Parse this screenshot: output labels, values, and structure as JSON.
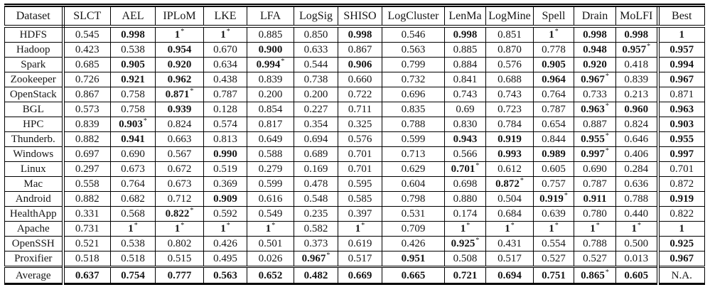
{
  "table": {
    "star_symbol": "*",
    "columns": [
      "Dataset",
      "SLCT",
      "AEL",
      "IPLoM",
      "LKE",
      "LFA",
      "LogSig",
      "SHISO",
      "LogCluster",
      "LenMa",
      "LogMine",
      "Spell",
      "Drain",
      "MoLFI",
      "Best"
    ],
    "rows": [
      {
        "dataset": "HDFS",
        "cells": [
          {
            "v": "0.545"
          },
          {
            "v": "0.998",
            "b": true
          },
          {
            "v": "1",
            "b": true,
            "s": true
          },
          {
            "v": "1",
            "b": true,
            "s": true
          },
          {
            "v": "0.885"
          },
          {
            "v": "0.850"
          },
          {
            "v": "0.998",
            "b": true
          },
          {
            "v": "0.546"
          },
          {
            "v": "0.998",
            "b": true
          },
          {
            "v": "0.851"
          },
          {
            "v": "1",
            "b": true,
            "s": true
          },
          {
            "v": "0.998",
            "b": true
          },
          {
            "v": "0.998",
            "b": true
          },
          {
            "v": "1",
            "b": true
          }
        ]
      },
      {
        "dataset": "Hadoop",
        "cells": [
          {
            "v": "0.423"
          },
          {
            "v": "0.538"
          },
          {
            "v": "0.954",
            "b": true
          },
          {
            "v": "0.670"
          },
          {
            "v": "0.900",
            "b": true
          },
          {
            "v": "0.633"
          },
          {
            "v": "0.867"
          },
          {
            "v": "0.563"
          },
          {
            "v": "0.885"
          },
          {
            "v": "0.870"
          },
          {
            "v": "0.778"
          },
          {
            "v": "0.948",
            "b": true
          },
          {
            "v": "0.957",
            "b": true,
            "s": true
          },
          {
            "v": "0.957",
            "b": true
          }
        ]
      },
      {
        "dataset": "Spark",
        "cells": [
          {
            "v": "0.685"
          },
          {
            "v": "0.905",
            "b": true
          },
          {
            "v": "0.920",
            "b": true
          },
          {
            "v": "0.634"
          },
          {
            "v": "0.994",
            "b": true,
            "s": true
          },
          {
            "v": "0.544"
          },
          {
            "v": "0.906",
            "b": true
          },
          {
            "v": "0.799"
          },
          {
            "v": "0.884"
          },
          {
            "v": "0.576"
          },
          {
            "v": "0.905",
            "b": true
          },
          {
            "v": "0.920",
            "b": true
          },
          {
            "v": "0.418"
          },
          {
            "v": "0.994",
            "b": true
          }
        ]
      },
      {
        "dataset": "Zookeeper",
        "cells": [
          {
            "v": "0.726"
          },
          {
            "v": "0.921",
            "b": true
          },
          {
            "v": "0.962",
            "b": true
          },
          {
            "v": "0.438"
          },
          {
            "v": "0.839"
          },
          {
            "v": "0.738"
          },
          {
            "v": "0.660"
          },
          {
            "v": "0.732"
          },
          {
            "v": "0.841"
          },
          {
            "v": "0.688"
          },
          {
            "v": "0.964",
            "b": true
          },
          {
            "v": "0.967",
            "b": true,
            "s": true
          },
          {
            "v": "0.839"
          },
          {
            "v": "0.967",
            "b": true
          }
        ]
      },
      {
        "dataset": "OpenStack",
        "cells": [
          {
            "v": "0.867"
          },
          {
            "v": "0.758"
          },
          {
            "v": "0.871",
            "b": true,
            "s": true
          },
          {
            "v": "0.787"
          },
          {
            "v": "0.200"
          },
          {
            "v": "0.200"
          },
          {
            "v": "0.722"
          },
          {
            "v": "0.696"
          },
          {
            "v": "0.743"
          },
          {
            "v": "0.743"
          },
          {
            "v": "0.764"
          },
          {
            "v": "0.733"
          },
          {
            "v": "0.213"
          },
          {
            "v": "0.871"
          }
        ]
      },
      {
        "dataset": "BGL",
        "cells": [
          {
            "v": "0.573"
          },
          {
            "v": "0.758"
          },
          {
            "v": "0.939",
            "b": true
          },
          {
            "v": "0.128"
          },
          {
            "v": "0.854"
          },
          {
            "v": "0.227"
          },
          {
            "v": "0.711"
          },
          {
            "v": "0.835"
          },
          {
            "v": "0.69"
          },
          {
            "v": "0.723"
          },
          {
            "v": "0.787"
          },
          {
            "v": "0.963",
            "b": true,
            "s": true
          },
          {
            "v": "0.960",
            "b": true
          },
          {
            "v": "0.963",
            "b": true
          }
        ]
      },
      {
        "dataset": "HPC",
        "cells": [
          {
            "v": "0.839"
          },
          {
            "v": "0.903",
            "b": true,
            "s": true
          },
          {
            "v": "0.824"
          },
          {
            "v": "0.574"
          },
          {
            "v": "0.817"
          },
          {
            "v": "0.354"
          },
          {
            "v": "0.325"
          },
          {
            "v": "0.788"
          },
          {
            "v": "0.830"
          },
          {
            "v": "0.784"
          },
          {
            "v": "0.654"
          },
          {
            "v": "0.887"
          },
          {
            "v": "0.824"
          },
          {
            "v": "0.903",
            "b": true
          }
        ]
      },
      {
        "dataset": "Thunderb.",
        "cells": [
          {
            "v": "0.882"
          },
          {
            "v": "0.941",
            "b": true
          },
          {
            "v": "0.663"
          },
          {
            "v": "0.813"
          },
          {
            "v": "0.649"
          },
          {
            "v": "0.694"
          },
          {
            "v": "0.576"
          },
          {
            "v": "0.599"
          },
          {
            "v": "0.943",
            "b": true
          },
          {
            "v": "0.919",
            "b": true
          },
          {
            "v": "0.844"
          },
          {
            "v": "0.955",
            "b": true,
            "s": true
          },
          {
            "v": "0.646"
          },
          {
            "v": "0.955",
            "b": true
          }
        ]
      },
      {
        "dataset": "Windows",
        "cells": [
          {
            "v": "0.697"
          },
          {
            "v": "0.690"
          },
          {
            "v": "0.567"
          },
          {
            "v": "0.990",
            "b": true
          },
          {
            "v": "0.588"
          },
          {
            "v": "0.689"
          },
          {
            "v": "0.701"
          },
          {
            "v": "0.713"
          },
          {
            "v": "0.566"
          },
          {
            "v": "0.993",
            "b": true
          },
          {
            "v": "0.989",
            "b": true
          },
          {
            "v": "0.997",
            "b": true,
            "s": true
          },
          {
            "v": "0.406"
          },
          {
            "v": "0.997",
            "b": true
          }
        ]
      },
      {
        "dataset": "Linux",
        "cells": [
          {
            "v": "0.297"
          },
          {
            "v": "0.673"
          },
          {
            "v": "0.672"
          },
          {
            "v": "0.519"
          },
          {
            "v": "0.279"
          },
          {
            "v": "0.169"
          },
          {
            "v": "0.701"
          },
          {
            "v": "0.629"
          },
          {
            "v": "0.701",
            "b": true,
            "s": true
          },
          {
            "v": "0.612"
          },
          {
            "v": "0.605"
          },
          {
            "v": "0.690"
          },
          {
            "v": "0.284"
          },
          {
            "v": "0.701"
          }
        ]
      },
      {
        "dataset": "Mac",
        "cells": [
          {
            "v": "0.558"
          },
          {
            "v": "0.764"
          },
          {
            "v": "0.673"
          },
          {
            "v": "0.369"
          },
          {
            "v": "0.599"
          },
          {
            "v": "0.478"
          },
          {
            "v": "0.595"
          },
          {
            "v": "0.604"
          },
          {
            "v": "0.698"
          },
          {
            "v": "0.872",
            "b": true,
            "s": true
          },
          {
            "v": "0.757"
          },
          {
            "v": "0.787"
          },
          {
            "v": "0.636"
          },
          {
            "v": "0.872"
          }
        ]
      },
      {
        "dataset": "Android",
        "cells": [
          {
            "v": "0.882"
          },
          {
            "v": "0.682"
          },
          {
            "v": "0.712"
          },
          {
            "v": "0.909",
            "b": true
          },
          {
            "v": "0.616"
          },
          {
            "v": "0.548"
          },
          {
            "v": "0.585"
          },
          {
            "v": "0.798"
          },
          {
            "v": "0.880"
          },
          {
            "v": "0.504"
          },
          {
            "v": "0.919",
            "b": true,
            "s": true
          },
          {
            "v": "0.911",
            "b": true
          },
          {
            "v": "0.788"
          },
          {
            "v": "0.919",
            "b": true
          }
        ]
      },
      {
        "dataset": "HealthApp",
        "cells": [
          {
            "v": "0.331"
          },
          {
            "v": "0.568"
          },
          {
            "v": "0.822",
            "b": true,
            "s": true
          },
          {
            "v": "0.592"
          },
          {
            "v": "0.549"
          },
          {
            "v": "0.235"
          },
          {
            "v": "0.397"
          },
          {
            "v": "0.531"
          },
          {
            "v": "0.174"
          },
          {
            "v": "0.684"
          },
          {
            "v": "0.639"
          },
          {
            "v": "0.780"
          },
          {
            "v": "0.440"
          },
          {
            "v": "0.822"
          }
        ]
      },
      {
        "dataset": "Apache",
        "cells": [
          {
            "v": "0.731"
          },
          {
            "v": "1",
            "b": true,
            "s": true
          },
          {
            "v": "1",
            "b": true,
            "s": true
          },
          {
            "v": "1",
            "b": true,
            "s": true
          },
          {
            "v": "1",
            "b": true,
            "s": true
          },
          {
            "v": "0.582"
          },
          {
            "v": "1",
            "b": true,
            "s": true
          },
          {
            "v": "0.709"
          },
          {
            "v": "1",
            "b": true,
            "s": true
          },
          {
            "v": "1",
            "b": true,
            "s": true
          },
          {
            "v": "1",
            "b": true,
            "s": true
          },
          {
            "v": "1",
            "b": true,
            "s": true
          },
          {
            "v": "1",
            "b": true,
            "s": true
          },
          {
            "v": "1",
            "b": true
          }
        ]
      },
      {
        "dataset": "OpenSSH",
        "cells": [
          {
            "v": "0.521"
          },
          {
            "v": "0.538"
          },
          {
            "v": "0.802"
          },
          {
            "v": "0.426"
          },
          {
            "v": "0.501"
          },
          {
            "v": "0.373"
          },
          {
            "v": "0.619"
          },
          {
            "v": "0.426"
          },
          {
            "v": "0.925",
            "b": true,
            "s": true
          },
          {
            "v": "0.431"
          },
          {
            "v": "0.554"
          },
          {
            "v": "0.788"
          },
          {
            "v": "0.500"
          },
          {
            "v": "0.925",
            "b": true
          }
        ]
      },
      {
        "dataset": "Proxifier",
        "cells": [
          {
            "v": "0.518"
          },
          {
            "v": "0.518"
          },
          {
            "v": "0.515"
          },
          {
            "v": "0.495"
          },
          {
            "v": "0.026"
          },
          {
            "v": "0.967",
            "b": true,
            "s": true
          },
          {
            "v": "0.517"
          },
          {
            "v": "0.951",
            "b": true
          },
          {
            "v": "0.508"
          },
          {
            "v": "0.517"
          },
          {
            "v": "0.527"
          },
          {
            "v": "0.527"
          },
          {
            "v": "0.013"
          },
          {
            "v": "0.967",
            "b": true
          }
        ]
      },
      {
        "dataset": "Average",
        "average": true,
        "cells": [
          {
            "v": "0.637",
            "b": true
          },
          {
            "v": "0.754",
            "b": true
          },
          {
            "v": "0.777",
            "b": true
          },
          {
            "v": "0.563",
            "b": true
          },
          {
            "v": "0.652",
            "b": true
          },
          {
            "v": "0.482",
            "b": true
          },
          {
            "v": "0.669",
            "b": true
          },
          {
            "v": "0.665",
            "b": true
          },
          {
            "v": "0.721",
            "b": true
          },
          {
            "v": "0.694",
            "b": true
          },
          {
            "v": "0.751",
            "b": true
          },
          {
            "v": "0.865",
            "b": true,
            "s": true
          },
          {
            "v": "0.605",
            "b": true
          },
          {
            "v": "N.A."
          }
        ]
      }
    ]
  }
}
